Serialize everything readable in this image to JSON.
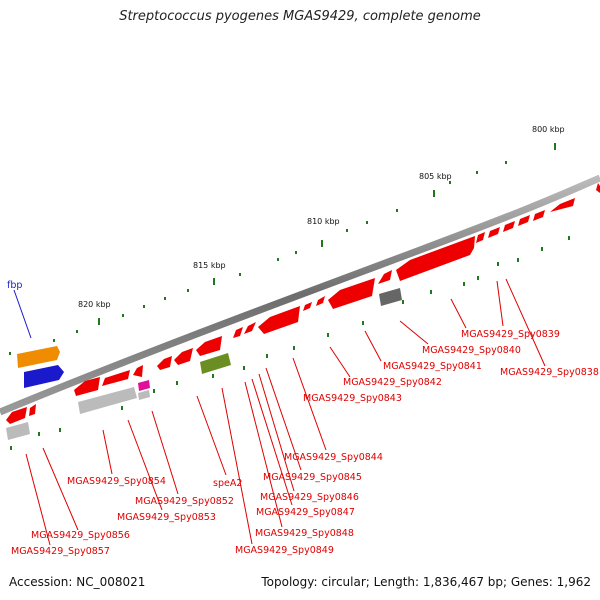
{
  "title": "Streptococcus pyogenes MGAS9429, complete genome",
  "footer": {
    "accession": "Accession: NC_008021",
    "topology": "Topology: circular; Length: 1,836,467 bp; Genes: 1,962"
  },
  "scale_labels": [
    "800 kbp",
    "805 kbp",
    "810 kbp",
    "815 kbp",
    "820 kbp"
  ],
  "gene_labels": [
    "MGAS9429_Spy0838",
    "MGAS9429_Spy0839",
    "MGAS9429_Spy0840",
    "MGAS9429_Spy0841",
    "MGAS9429_Spy0842",
    "MGAS9429_Spy0843",
    "MGAS9429_Spy0844",
    "MGAS9429_Spy0845",
    "MGAS9429_Spy0846",
    "MGAS9429_Spy0847",
    "MGAS9429_Spy0848",
    "MGAS9429_Spy0849",
    "speA2",
    "MGAS9429_Spy0852",
    "MGAS9429_Spy0853",
    "MGAS9429_Spy0854",
    "MGAS9429_Spy0856",
    "MGAS9429_Spy0857"
  ],
  "blue_label": "fbp",
  "colors": {
    "cds": "#ee0000",
    "backbone": "#888888",
    "tick": "#1f7a1f",
    "label": "#e00000",
    "blue": "#1a1acc",
    "orange": "#f08c00",
    "olive": "#6b8e23",
    "grey": "#bbbbbb",
    "dark": "#666666",
    "magenta": "#e0109a"
  }
}
